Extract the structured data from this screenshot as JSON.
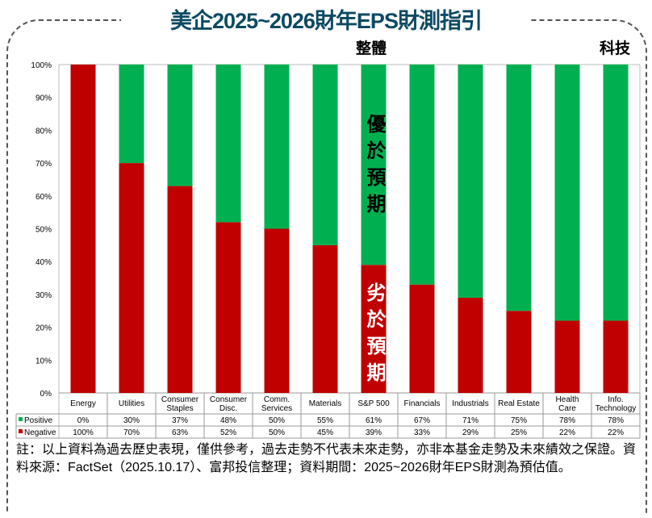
{
  "title": "美企2025~2026財年EPS財測指引",
  "labels": {
    "overall": "整體",
    "tech": "科技",
    "better": "優於預期",
    "worse": "劣於預期"
  },
  "note": "註：以上資料為過去歷史表現，僅供參考，過去走勢不代表未來走勢，亦非本基金走勢及未來績效之保證。資料來源：FactSet（2025.10.17）、富邦投信整理；資料期間：2025~2026財年EPS財測為預估值。",
  "chart_data": {
    "type": "bar",
    "stacked": true,
    "categories": [
      "Energy",
      "Utilities",
      "Consumer Staples",
      "Consumer Disc.",
      "Comm. Services",
      "Materials",
      "S&P 500",
      "Financials",
      "Industrials",
      "Real Estate",
      "Health Care",
      "Info. Technology"
    ],
    "series": [
      {
        "name": "Positive",
        "color": "#00b050",
        "values": [
          0,
          30,
          37,
          48,
          50,
          55,
          61,
          67,
          71,
          75,
          78,
          78
        ],
        "labels": [
          "0%",
          "30%",
          "37%",
          "48%",
          "50%",
          "55%",
          "61%",
          "67%",
          "71%",
          "75%",
          "78%",
          "78%"
        ]
      },
      {
        "name": "Negative",
        "color": "#c00000",
        "values": [
          100,
          70,
          63,
          52,
          50,
          45,
          39,
          33,
          29,
          25,
          22,
          22
        ],
        "labels": [
          "100%",
          "70%",
          "63%",
          "52%",
          "50%",
          "45%",
          "39%",
          "33%",
          "29%",
          "25%",
          "22%",
          "22%"
        ]
      }
    ],
    "yticks": [
      "0%",
      "10%",
      "20%",
      "30%",
      "40%",
      "50%",
      "60%",
      "70%",
      "80%",
      "90%",
      "100%"
    ],
    "ylim": [
      0,
      100
    ],
    "legend": "bottom-table"
  }
}
